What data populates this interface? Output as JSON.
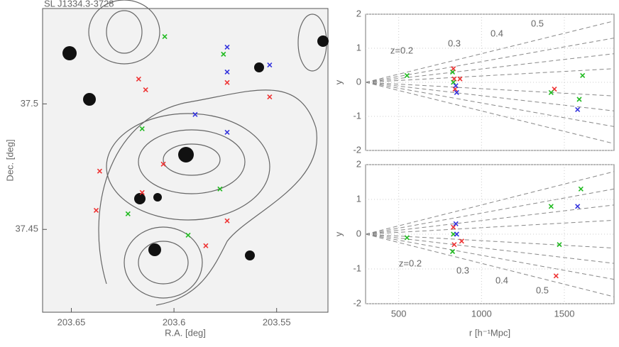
{
  "chart_data": [
    {
      "type": "scatter",
      "title": "SL J1334.3-3728",
      "x_label": "R.A. [deg]",
      "y_label": "Dec. [deg]",
      "xlim": [
        203.664,
        203.525
      ],
      "xticks": [
        203.65,
        203.6,
        203.55
      ],
      "ylim": [
        37.417,
        37.538
      ],
      "yticks": [
        37.5,
        37.45
      ],
      "grid": false,
      "series": [
        {
          "color": "#ee3333",
          "x": [
            203.6172,
            203.6138,
            203.6052,
            203.6362,
            203.6379,
            203.6155,
            203.5845,
            203.5741,
            203.5741,
            203.5534
          ],
          "values": [
            37.5099,
            37.5056,
            37.476,
            37.4732,
            37.4576,
            37.4647,
            37.4435,
            37.4534,
            37.5085,
            37.5028
          ]
        },
        {
          "color": "#22bb22",
          "x": [
            203.6045,
            203.5759,
            203.6155,
            203.5776,
            203.6224,
            203.5931
          ],
          "values": [
            37.5268,
            37.5198,
            37.4901,
            37.4661,
            37.4562,
            37.4477
          ]
        },
        {
          "color": "#3333dd",
          "x": [
            203.5741,
            203.5741,
            203.5897,
            203.5741,
            203.5534
          ],
          "values": [
            37.5226,
            37.5127,
            37.4958,
            37.4887,
            37.5155
          ]
        }
      ]
    },
    {
      "type": "scatter",
      "y_label": "y",
      "xlim": [
        300,
        1800
      ],
      "xticks": [
        500,
        1000,
        1500
      ],
      "ylim": [
        -2,
        2
      ],
      "yticks": [
        -2,
        -1,
        0,
        1,
        2
      ],
      "grid": true,
      "annotations": [
        "z=0.2",
        "0.3",
        "0.4",
        "0.5"
      ],
      "series": [
        {
          "color": "#ee3333",
          "x": [
            830,
            835,
            840,
            870,
            1440
          ],
          "values": [
            0.4,
            0.1,
            -0.2,
            0.1,
            -0.2
          ]
        },
        {
          "color": "#22bb22",
          "x": [
            550,
            825,
            830,
            1420,
            1590,
            1610
          ],
          "values": [
            0.2,
            0.3,
            0.0,
            -0.3,
            -0.5,
            0.2
          ]
        },
        {
          "color": "#3333dd",
          "x": [
            845,
            850,
            1580
          ],
          "values": [
            -0.1,
            -0.3,
            -0.8
          ]
        }
      ]
    },
    {
      "type": "scatter",
      "x_label": "r [h⁻¹Mpc]",
      "y_label": "y",
      "xlim": [
        300,
        1800
      ],
      "xticks": [
        500,
        1000,
        1500
      ],
      "ylim": [
        -2,
        2
      ],
      "yticks": [
        -2,
        -1,
        0,
        1,
        2
      ],
      "grid": true,
      "annotations": [
        "z=0.2",
        "0.3",
        "0.4",
        "0.5"
      ],
      "series": [
        {
          "color": "#ee3333",
          "x": [
            830,
            835,
            880,
            1450
          ],
          "values": [
            0.2,
            -0.3,
            -0.2,
            -1.2
          ]
        },
        {
          "color": "#22bb22",
          "x": [
            550,
            825,
            830,
            1420,
            1470,
            1600
          ],
          "values": [
            -0.1,
            -0.5,
            0.0,
            0.8,
            -0.3,
            1.3
          ]
        },
        {
          "color": "#3333dd",
          "x": [
            845,
            850,
            1580
          ],
          "values": [
            0.3,
            0.0,
            0.8
          ]
        }
      ]
    }
  ]
}
